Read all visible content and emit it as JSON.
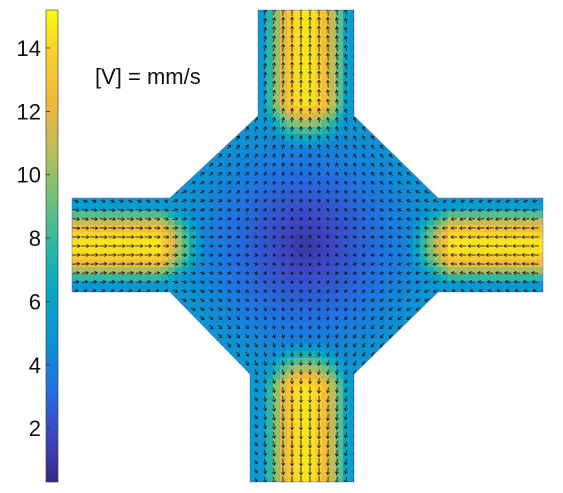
{
  "chart_data": {
    "type": "heatmap",
    "title": "",
    "annotation": "[V] = mm/s",
    "colormap": "parula",
    "colorbar": {
      "range": [
        0.3,
        15.2
      ],
      "ticks": [
        {
          "value": 2,
          "label": "2"
        },
        {
          "value": 4,
          "label": "4"
        },
        {
          "value": 6,
          "label": "6"
        },
        {
          "value": 8,
          "label": "8"
        },
        {
          "value": 10,
          "label": "10"
        },
        {
          "value": 12,
          "label": "12"
        },
        {
          "value": 14,
          "label": "14"
        }
      ]
    },
    "field": {
      "description_free": true,
      "channel_peak_speed": 14.5,
      "center_speed": 1.0,
      "arrow_direction": "inflow from left and right channels, outflow through top and bottom channels",
      "arrows": "black"
    }
  },
  "colors": {
    "parula": [
      "#352a87",
      "#3e46c4",
      "#1f73e0",
      "#0d93d2",
      "#06a7c6",
      "#2eb7a4",
      "#75bf7c",
      "#b9bd5a",
      "#f1b93c",
      "#f8cd31",
      "#f9fb0e"
    ]
  }
}
